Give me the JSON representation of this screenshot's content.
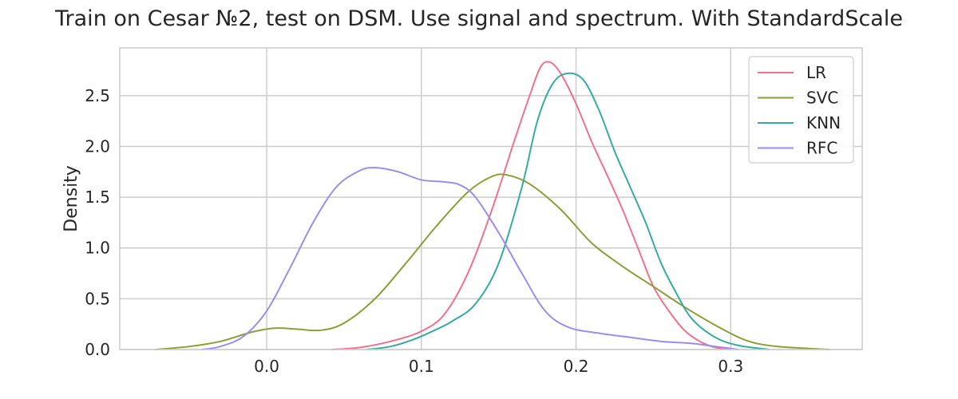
{
  "chart_data": {
    "type": "line",
    "title": "Train on Cesar №2, test on DSM. Use signal and spectrum. With StandardScale",
    "xlabel": "",
    "ylabel": "Density",
    "xlim": [
      -0.095,
      0.385
    ],
    "ylim": [
      0.0,
      2.97
    ],
    "xticks": [
      0.0,
      0.1,
      0.2,
      0.3
    ],
    "xtick_labels": [
      "0.0",
      "0.1",
      "0.2",
      "0.3"
    ],
    "yticks": [
      0.0,
      0.5,
      1.0,
      1.5,
      2.0,
      2.5
    ],
    "ytick_labels": [
      "0.0",
      "0.5",
      "1.0",
      "1.5",
      "2.0",
      "2.5"
    ],
    "grid": true,
    "legend_position": "top-right",
    "series": [
      {
        "name": "LR",
        "color": "#f0728d",
        "points": [
          [
            0.042,
            0.0
          ],
          [
            0.06,
            0.02
          ],
          [
            0.08,
            0.08
          ],
          [
            0.1,
            0.18
          ],
          [
            0.115,
            0.35
          ],
          [
            0.13,
            0.75
          ],
          [
            0.145,
            1.35
          ],
          [
            0.16,
            2.05
          ],
          [
            0.17,
            2.5
          ],
          [
            0.177,
            2.78
          ],
          [
            0.183,
            2.83
          ],
          [
            0.19,
            2.72
          ],
          [
            0.2,
            2.42
          ],
          [
            0.21,
            2.05
          ],
          [
            0.22,
            1.72
          ],
          [
            0.23,
            1.38
          ],
          [
            0.24,
            1.0
          ],
          [
            0.25,
            0.62
          ],
          [
            0.26,
            0.38
          ],
          [
            0.27,
            0.19
          ],
          [
            0.28,
            0.08
          ],
          [
            0.29,
            0.02
          ],
          [
            0.3,
            0.0
          ]
        ]
      },
      {
        "name": "SVC",
        "color": "#8a9e39",
        "points": [
          [
            -0.072,
            0.0
          ],
          [
            -0.05,
            0.03
          ],
          [
            -0.03,
            0.08
          ],
          [
            -0.01,
            0.17
          ],
          [
            0.005,
            0.21
          ],
          [
            0.02,
            0.2
          ],
          [
            0.035,
            0.19
          ],
          [
            0.05,
            0.26
          ],
          [
            0.07,
            0.5
          ],
          [
            0.09,
            0.85
          ],
          [
            0.11,
            1.22
          ],
          [
            0.13,
            1.55
          ],
          [
            0.145,
            1.7
          ],
          [
            0.155,
            1.72
          ],
          [
            0.17,
            1.63
          ],
          [
            0.19,
            1.38
          ],
          [
            0.21,
            1.05
          ],
          [
            0.23,
            0.82
          ],
          [
            0.25,
            0.62
          ],
          [
            0.27,
            0.42
          ],
          [
            0.29,
            0.24
          ],
          [
            0.31,
            0.09
          ],
          [
            0.33,
            0.03
          ],
          [
            0.364,
            0.0
          ]
        ]
      },
      {
        "name": "KNN",
        "color": "#36aba2",
        "points": [
          [
            0.065,
            0.0
          ],
          [
            0.08,
            0.03
          ],
          [
            0.095,
            0.1
          ],
          [
            0.11,
            0.2
          ],
          [
            0.12,
            0.28
          ],
          [
            0.135,
            0.45
          ],
          [
            0.15,
            0.85
          ],
          [
            0.165,
            1.6
          ],
          [
            0.175,
            2.25
          ],
          [
            0.185,
            2.62
          ],
          [
            0.195,
            2.72
          ],
          [
            0.205,
            2.65
          ],
          [
            0.215,
            2.35
          ],
          [
            0.225,
            1.95
          ],
          [
            0.235,
            1.6
          ],
          [
            0.245,
            1.25
          ],
          [
            0.255,
            0.85
          ],
          [
            0.265,
            0.55
          ],
          [
            0.275,
            0.3
          ],
          [
            0.29,
            0.12
          ],
          [
            0.305,
            0.04
          ],
          [
            0.325,
            0.0
          ]
        ]
      },
      {
        "name": "RFC",
        "color": "#9e8ced",
        "points": [
          [
            -0.042,
            0.0
          ],
          [
            -0.03,
            0.03
          ],
          [
            -0.015,
            0.13
          ],
          [
            0.0,
            0.38
          ],
          [
            0.015,
            0.8
          ],
          [
            0.03,
            1.25
          ],
          [
            0.045,
            1.6
          ],
          [
            0.06,
            1.76
          ],
          [
            0.07,
            1.79
          ],
          [
            0.085,
            1.75
          ],
          [
            0.1,
            1.67
          ],
          [
            0.115,
            1.65
          ],
          [
            0.125,
            1.62
          ],
          [
            0.135,
            1.5
          ],
          [
            0.15,
            1.15
          ],
          [
            0.165,
            0.75
          ],
          [
            0.18,
            0.38
          ],
          [
            0.195,
            0.22
          ],
          [
            0.215,
            0.16
          ],
          [
            0.235,
            0.12
          ],
          [
            0.255,
            0.08
          ],
          [
            0.275,
            0.06
          ],
          [
            0.29,
            0.03
          ],
          [
            0.305,
            0.0
          ]
        ]
      }
    ]
  }
}
